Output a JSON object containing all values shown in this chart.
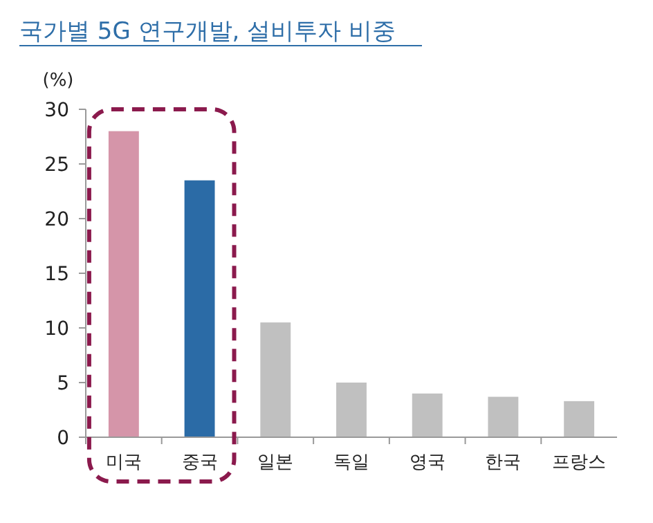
{
  "chart_data": {
    "type": "bar",
    "title": "국가별 5G 연구개발, 설비투자 비중",
    "ylabel": "(%)",
    "categories": [
      "미국",
      "중국",
      "일본",
      "독일",
      "영국",
      "한국",
      "프랑스"
    ],
    "values": [
      28,
      23.5,
      10.5,
      5,
      4,
      3.7,
      3.3
    ],
    "colors": [
      "#d595a9",
      "#2b6ba6",
      "#c0c0c0",
      "#c0c0c0",
      "#c0c0c0",
      "#c0c0c0",
      "#c0c0c0"
    ],
    "ylim": [
      0,
      30
    ],
    "yticks": [
      0,
      5,
      10,
      15,
      20,
      25,
      30
    ]
  }
}
